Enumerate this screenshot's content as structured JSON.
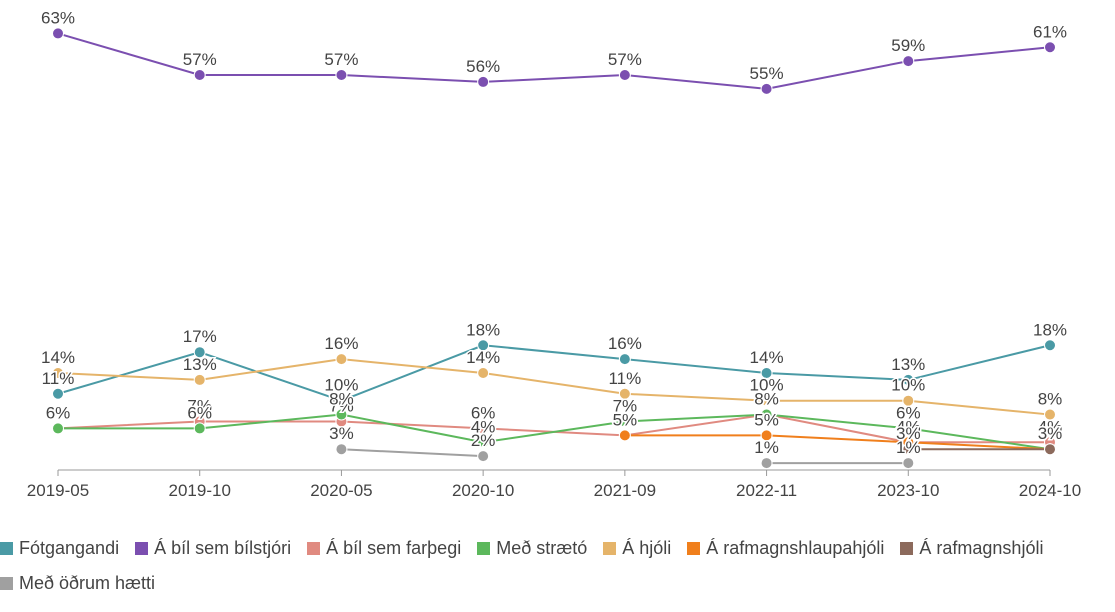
{
  "chart_data": {
    "type": "line",
    "categories": [
      "2019-05",
      "2019-10",
      "2020-05",
      "2020-10",
      "2021-09",
      "2022-11",
      "2023-10",
      "2024-10"
    ],
    "series": [
      {
        "name": "Fótgangandi",
        "color": "#4a9aa5",
        "values": [
          11,
          17,
          10,
          18,
          16,
          14,
          13,
          18
        ],
        "value_labels": [
          "11%",
          "17%",
          "10%",
          "18%",
          "16%",
          "14%",
          "13%",
          "18%"
        ]
      },
      {
        "name": "Á bíl sem bílstjóri",
        "color": "#7b4fb0",
        "values": [
          63,
          57,
          57,
          56,
          57,
          55,
          59,
          61
        ],
        "value_labels": [
          "63%",
          "57%",
          "57%",
          "56%",
          "57%",
          "55%",
          "59%",
          "61%"
        ]
      },
      {
        "name": "Á bíl sem farþegi",
        "color": "#e08a80",
        "values": [
          6,
          7,
          7,
          6,
          5,
          8,
          4,
          4
        ],
        "value_labels": [
          "6%",
          "7%",
          "7%",
          "6%",
          "5%",
          "8%",
          "4%",
          "4%"
        ]
      },
      {
        "name": "Með strætó",
        "color": "#5cb85c",
        "values": [
          6,
          6,
          8,
          4,
          7,
          8,
          6,
          3
        ],
        "value_labels": [
          "6%",
          "6%",
          "8%",
          "4%",
          "7%",
          "8%",
          "6%",
          "3%"
        ]
      },
      {
        "name": "Á hjóli",
        "color": "#e5b46a",
        "values": [
          14,
          13,
          16,
          14,
          11,
          10,
          10,
          8
        ],
        "value_labels": [
          "14%",
          "13%",
          "16%",
          "14%",
          "11%",
          "10%",
          "10%",
          "8%"
        ]
      },
      {
        "name": "Á rafmagnshlaupahjóli",
        "color": "#f07f1c",
        "values": [
          null,
          null,
          null,
          null,
          5,
          5,
          4,
          3
        ],
        "value_labels": [
          null,
          null,
          null,
          null,
          "5%",
          "5%",
          "4%",
          "3%"
        ]
      },
      {
        "name": "Á rafmagnshjóli",
        "color": "#8c6a5c",
        "values": [
          null,
          null,
          null,
          null,
          null,
          null,
          3,
          3
        ],
        "value_labels": [
          null,
          null,
          null,
          null,
          null,
          null,
          "3%",
          "3%"
        ]
      },
      {
        "name": "Með öðrum hætti",
        "color": "#a0a0a0",
        "values": [
          null,
          null,
          3,
          2,
          null,
          1,
          1,
          null
        ],
        "value_labels": [
          null,
          null,
          "3%",
          "2%",
          null,
          "1%",
          "1%",
          null
        ]
      }
    ]
  }
}
